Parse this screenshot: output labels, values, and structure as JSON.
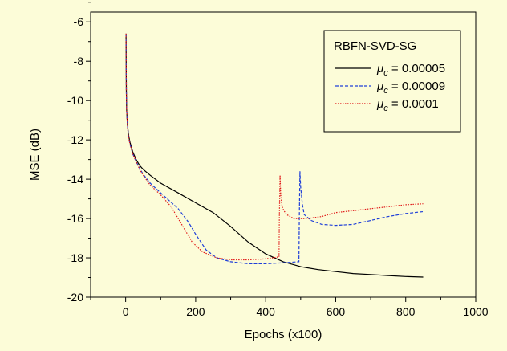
{
  "chart_data": {
    "type": "line",
    "xlabel": "Epochs (x100)",
    "ylabel": "MSE (dB)",
    "xlim": [
      -100,
      1000
    ],
    "ylim": [
      -20,
      -5.5
    ],
    "xticks": [
      0,
      200,
      400,
      600,
      800,
      1000
    ],
    "yticks": [
      -20,
      -18,
      -16,
      -14,
      -12,
      -10,
      -8,
      -6
    ],
    "grid": false,
    "legend": {
      "title": "RBFN-SVD-SG",
      "position": "top-right"
    },
    "series": [
      {
        "name": "μc = 0.00005",
        "symbol": "μ",
        "sub": "c",
        "value": " = 0.00005",
        "color": "#000000",
        "style": "solid",
        "x": [
          1,
          2,
          3,
          5,
          8,
          12,
          20,
          30,
          40,
          50,
          70,
          100,
          150,
          200,
          250,
          300,
          350,
          400,
          450,
          500,
          550,
          600,
          650,
          700,
          750,
          800,
          850
        ],
        "y": [
          -6.6,
          -9.5,
          -10.5,
          -11.2,
          -11.7,
          -12.1,
          -12.6,
          -13.0,
          -13.3,
          -13.5,
          -13.8,
          -14.2,
          -14.7,
          -15.2,
          -15.7,
          -16.4,
          -17.2,
          -17.8,
          -18.2,
          -18.45,
          -18.6,
          -18.7,
          -18.8,
          -18.85,
          -18.9,
          -18.95,
          -18.98
        ]
      },
      {
        "name": "μc = 0.00009",
        "symbol": "μ",
        "sub": "c",
        "value": " = 0.00009",
        "color": "#1f3fd8",
        "style": "dashed",
        "x": [
          1,
          2,
          3,
          5,
          8,
          12,
          20,
          30,
          40,
          50,
          70,
          100,
          150,
          180,
          200,
          230,
          260,
          300,
          350,
          400,
          450,
          495,
          496,
          498,
          500,
          505,
          510,
          530,
          560,
          600,
          650,
          700,
          750,
          800,
          850
        ],
        "y": [
          -6.6,
          -9.5,
          -10.5,
          -11.2,
          -11.8,
          -12.2,
          -12.7,
          -13.1,
          -13.45,
          -13.75,
          -14.2,
          -14.7,
          -15.5,
          -16.2,
          -16.8,
          -17.6,
          -18.0,
          -18.2,
          -18.3,
          -18.3,
          -18.25,
          -18.2,
          -16.0,
          -13.6,
          -14.4,
          -15.3,
          -15.8,
          -16.1,
          -16.3,
          -16.35,
          -16.3,
          -16.1,
          -15.9,
          -15.75,
          -15.65
        ]
      },
      {
        "name": "μc = 0.0001",
        "symbol": "μ",
        "sub": "c",
        "value": " = 0.0001",
        "color": "#e01818",
        "style": "dotted",
        "x": [
          1,
          2,
          3,
          5,
          8,
          12,
          20,
          30,
          40,
          50,
          70,
          100,
          130,
          160,
          190,
          220,
          260,
          300,
          350,
          400,
          438,
          439,
          441,
          443,
          447,
          452,
          460,
          480,
          520,
          560,
          600,
          650,
          700,
          750,
          800,
          850
        ],
        "y": [
          -6.6,
          -9.5,
          -10.5,
          -11.2,
          -11.8,
          -12.2,
          -12.7,
          -13.1,
          -13.5,
          -13.8,
          -14.3,
          -14.8,
          -15.4,
          -16.3,
          -17.2,
          -17.7,
          -18.0,
          -18.1,
          -18.1,
          -18.05,
          -17.95,
          -16.0,
          -13.8,
          -14.8,
          -15.4,
          -15.6,
          -15.8,
          -16.0,
          -16.0,
          -15.9,
          -15.7,
          -15.6,
          -15.5,
          -15.4,
          -15.3,
          -15.25
        ]
      }
    ]
  }
}
